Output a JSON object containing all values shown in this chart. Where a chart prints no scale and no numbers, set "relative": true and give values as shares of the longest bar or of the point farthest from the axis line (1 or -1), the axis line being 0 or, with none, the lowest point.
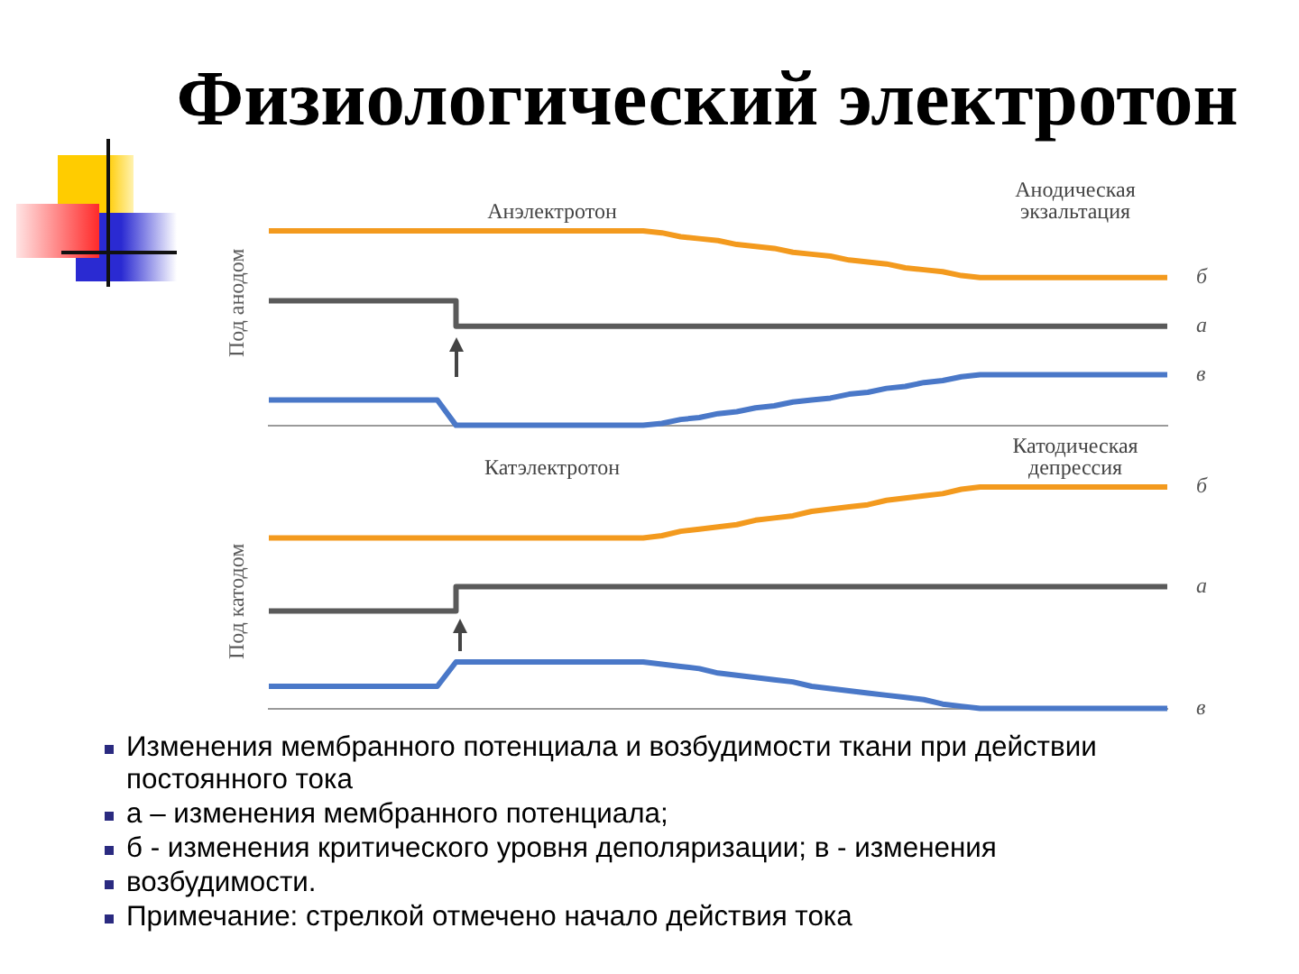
{
  "chart_data": [
    {
      "type": "line",
      "title": "Физиологический электротон",
      "ylabel": "Под анодом",
      "relative": true,
      "marker": "none",
      "categories": [
        null,
        null,
        null,
        null,
        null,
        null,
        null,
        null,
        null,
        null,
        null,
        null,
        null,
        null,
        null,
        null,
        null,
        null,
        null,
        null,
        null,
        null,
        null,
        null,
        null,
        null,
        null,
        null,
        null,
        null,
        null,
        null,
        null,
        null,
        null,
        null,
        null,
        null,
        null,
        null,
        null,
        null,
        null,
        null,
        null,
        null,
        null,
        null,
        null
      ],
      "annotations": [
        "Анэлектротон",
        "Анодическая экзальтация"
      ],
      "series": [
        {
          "name": "б",
          "color": "#f39a1e",
          "values": [
            1,
            1,
            1,
            1,
            1,
            1,
            1,
            1,
            1,
            1,
            1,
            1,
            1,
            1,
            1,
            1,
            1,
            1,
            1,
            1,
            1,
            0.99,
            0.97,
            0.96,
            0.95,
            0.93,
            0.92,
            0.91,
            0.89,
            0.88,
            0.87,
            0.85,
            0.84,
            0.83,
            0.81,
            0.8,
            0.79,
            0.77,
            0.76,
            0.76,
            0.76,
            0.76,
            0.76,
            0.76,
            0.76,
            0.76,
            0.76,
            0.76,
            0.76
          ]
        },
        {
          "name": "а",
          "type": "step",
          "color": "#5a5a5a",
          "values": [
            0.64,
            0.64,
            0.64,
            0.64,
            0.64,
            0.64,
            0.64,
            0.64,
            0.64,
            0.64,
            0.51,
            0.51,
            0.51,
            0.51,
            0.51,
            0.51,
            0.51,
            0.51,
            0.51,
            0.51,
            0.51,
            0.51,
            0.51,
            0.51,
            0.51,
            0.51,
            0.51,
            0.51,
            0.51,
            0.51,
            0.51,
            0.51,
            0.51,
            0.51,
            0.51,
            0.51,
            0.51,
            0.51,
            0.51,
            0.51,
            0.51,
            0.51,
            0.51,
            0.51,
            0.51,
            0.51,
            0.51,
            0.51,
            0.51
          ]
        },
        {
          "name": "в",
          "color": "#4a78c8",
          "values": [
            0.13,
            0.13,
            0.13,
            0.13,
            0.13,
            0.13,
            0.13,
            0.13,
            0.13,
            0.13,
            0,
            0,
            0,
            0,
            0,
            0,
            0,
            0,
            0,
            0,
            0,
            0.01,
            0.03,
            0.04,
            0.06,
            0.07,
            0.09,
            0.1,
            0.12,
            0.13,
            0.14,
            0.16,
            0.17,
            0.19,
            0.2,
            0.22,
            0.23,
            0.25,
            0.26,
            0.26,
            0.26,
            0.26,
            0.26,
            0.26,
            0.26,
            0.26,
            0.26,
            0.26,
            0.26
          ]
        }
      ]
    },
    {
      "type": "line",
      "ylabel": "Под катодом",
      "relative": true,
      "marker": "none",
      "categories": [
        null,
        null,
        null,
        null,
        null,
        null,
        null,
        null,
        null,
        null,
        null,
        null,
        null,
        null,
        null,
        null,
        null,
        null,
        null,
        null,
        null,
        null,
        null,
        null,
        null,
        null,
        null,
        null,
        null,
        null,
        null,
        null,
        null,
        null,
        null,
        null,
        null,
        null,
        null,
        null,
        null,
        null,
        null,
        null,
        null,
        null,
        null,
        null,
        null
      ],
      "annotations": [
        "Катэлектротон",
        "Катодическая депрессия",
        "Изменения мембранного потенциала и возбудимости ткани при действии постоянного тока",
        "а – изменения мембранного потенциала;",
        "б - изменения критического уровня деполяризации; в - изменения",
        "возбудимости.",
        "Примечание: стрелкой отмечено начало действия тока"
      ],
      "series": [
        {
          "name": "б",
          "color": "#f39a1e",
          "values": [
            0.77,
            0.77,
            0.77,
            0.77,
            0.77,
            0.77,
            0.77,
            0.77,
            0.77,
            0.77,
            0.77,
            0.77,
            0.77,
            0.77,
            0.77,
            0.77,
            0.77,
            0.77,
            0.77,
            0.77,
            0.77,
            0.78,
            0.8,
            0.81,
            0.82,
            0.83,
            0.85,
            0.86,
            0.87,
            0.89,
            0.9,
            0.91,
            0.92,
            0.94,
            0.95,
            0.96,
            0.97,
            0.99,
            1,
            1,
            1,
            1,
            1,
            1,
            1,
            1,
            1,
            1,
            1
          ]
        },
        {
          "name": "а",
          "type": "step",
          "color": "#5a5a5a",
          "values": [
            0.44,
            0.44,
            0.44,
            0.44,
            0.44,
            0.44,
            0.44,
            0.44,
            0.44,
            0.44,
            0.55,
            0.55,
            0.55,
            0.55,
            0.55,
            0.55,
            0.55,
            0.55,
            0.55,
            0.55,
            0.55,
            0.55,
            0.55,
            0.55,
            0.55,
            0.55,
            0.55,
            0.55,
            0.55,
            0.55,
            0.55,
            0.55,
            0.55,
            0.55,
            0.55,
            0.55,
            0.55,
            0.55,
            0.55,
            0.55,
            0.55,
            0.55,
            0.55,
            0.55,
            0.55,
            0.55,
            0.55,
            0.55,
            0.55
          ]
        },
        {
          "name": "в",
          "color": "#4a78c8",
          "values": [
            0.1,
            0.1,
            0.1,
            0.1,
            0.1,
            0.1,
            0.1,
            0.1,
            0.1,
            0.1,
            0.21,
            0.21,
            0.21,
            0.21,
            0.21,
            0.21,
            0.21,
            0.21,
            0.21,
            0.21,
            0.21,
            0.2,
            0.19,
            0.18,
            0.16,
            0.15,
            0.14,
            0.13,
            0.12,
            0.1,
            0.09,
            0.08,
            0.07,
            0.06,
            0.05,
            0.04,
            0.02,
            0.01,
            0,
            0,
            0,
            0,
            0,
            0,
            0,
            0,
            0,
            0,
            0
          ]
        }
      ]
    }
  ]
}
